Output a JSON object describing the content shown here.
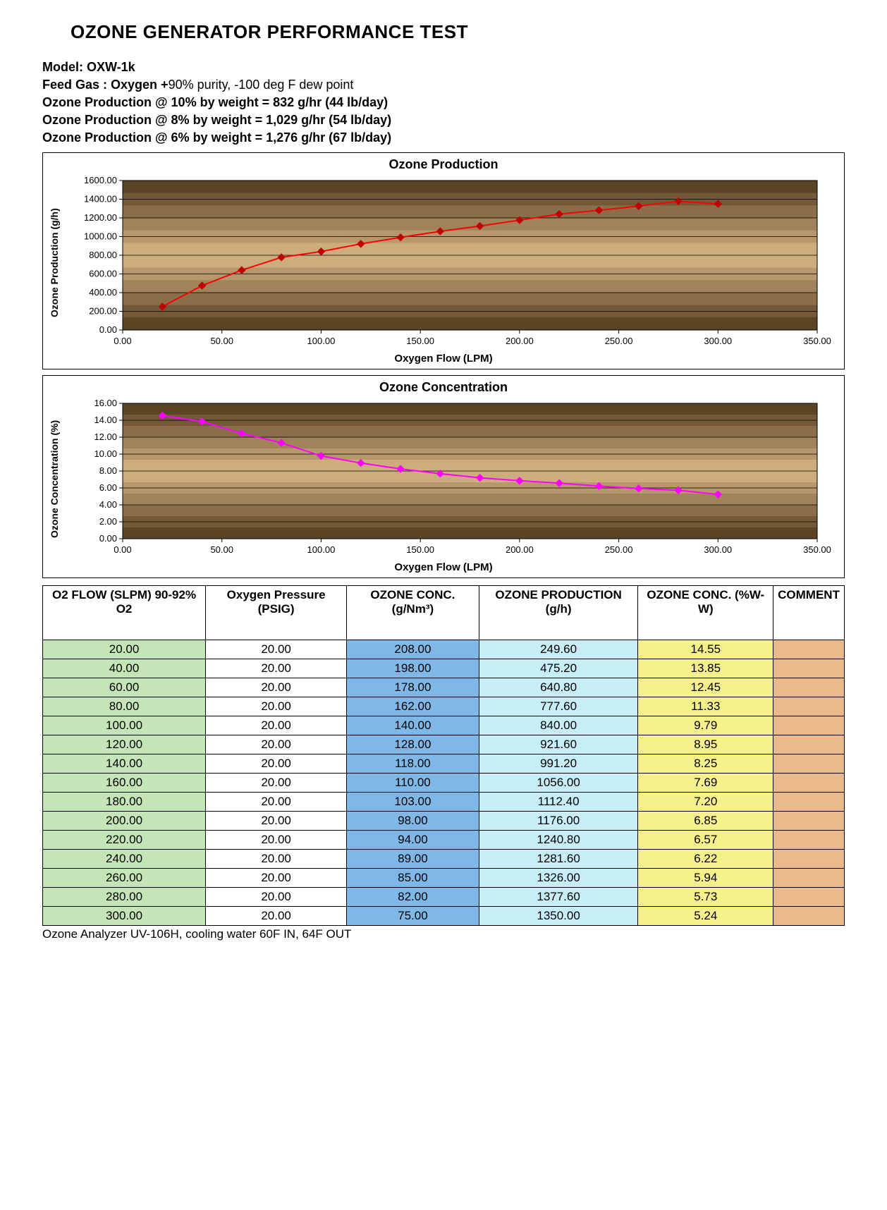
{
  "title": "OZONE GENERATOR PERFORMANCE TEST",
  "header": {
    "model_label": "Model: ",
    "model_value": "OXW-1k",
    "feed_label": "Feed Gas : Oxygen +",
    "feed_value": "90% purity, -100 deg F dew point",
    "prod10": "Ozone Production @ 10% by weight = 832 g/hr (44 lb/day)",
    "prod8": "Ozone Production @ 8% by weight = 1,029 g/hr (54 lb/day)",
    "prod6": "Ozone Production @ 6% by weight = 1,276 g/hr (67 lb/day)"
  },
  "chart1": {
    "type": "line",
    "title": "Ozone Production",
    "x_label": "Oxygen Flow (LPM)",
    "y_label": "Ozone Production (g/h)",
    "xlim": [
      0,
      350
    ],
    "xtick_step": 50,
    "ylim": [
      0,
      1600
    ],
    "ytick_step": 200,
    "line_color": "#ff0000",
    "marker_color": "#c00000",
    "marker_size": 5,
    "line_width": 2,
    "grid_color": "#000000",
    "plot_bg_top": "#5c4426",
    "plot_bg_mid": "#d8b886",
    "plot_bg_bot": "#5c4426",
    "tick_decimals": 2,
    "x": [
      20,
      40,
      60,
      80,
      100,
      120,
      140,
      160,
      180,
      200,
      220,
      240,
      260,
      280,
      300
    ],
    "y": [
      249.6,
      475.2,
      640.8,
      777.6,
      840.0,
      921.6,
      991.2,
      1056.0,
      1112.4,
      1176.0,
      1240.8,
      1281.6,
      1326.0,
      1377.6,
      1350.0
    ]
  },
  "chart2": {
    "type": "line",
    "title": "Ozone Concentration",
    "x_label": "Oxygen Flow (LPM)",
    "y_label": "Ozone Concentration (%)",
    "xlim": [
      0,
      350
    ],
    "xtick_step": 50,
    "ylim": [
      0,
      16
    ],
    "ytick_step": 2,
    "line_color": "#ff00ff",
    "marker_color": "#ff00ff",
    "marker_size": 5,
    "line_width": 2,
    "grid_color": "#000000",
    "plot_bg_top": "#5c4426",
    "plot_bg_mid": "#d8b886",
    "plot_bg_bot": "#5c4426",
    "tick_decimals": 2,
    "x": [
      20,
      40,
      60,
      80,
      100,
      120,
      140,
      160,
      180,
      200,
      220,
      240,
      260,
      280,
      300
    ],
    "y": [
      14.55,
      13.85,
      12.45,
      11.33,
      9.79,
      8.95,
      8.25,
      7.69,
      7.2,
      6.85,
      6.57,
      6.22,
      5.94,
      5.73,
      5.24
    ]
  },
  "table": {
    "columns": [
      "O2 FLOW (SLPM) 90-92% O2",
      "Oxygen Pressure (PSIG)",
      "OZONE CONC. (g/Nm³)",
      "OZONE PRODUCTION (g/h)",
      "OZONE CONC. (%W-W)",
      "COMMENT"
    ],
    "col_bg": [
      "#c4e5b5",
      "#ffffff",
      "#7fb7e6",
      "#c7eef7",
      "#f5f08a",
      "#eab98a"
    ],
    "col_decimals": [
      2,
      2,
      2,
      2,
      2,
      null
    ],
    "rows": [
      [
        20.0,
        20.0,
        208.0,
        249.6,
        14.55,
        ""
      ],
      [
        40.0,
        20.0,
        198.0,
        475.2,
        13.85,
        ""
      ],
      [
        60.0,
        20.0,
        178.0,
        640.8,
        12.45,
        ""
      ],
      [
        80.0,
        20.0,
        162.0,
        777.6,
        11.33,
        ""
      ],
      [
        100.0,
        20.0,
        140.0,
        840.0,
        9.79,
        ""
      ],
      [
        120.0,
        20.0,
        128.0,
        921.6,
        8.95,
        ""
      ],
      [
        140.0,
        20.0,
        118.0,
        991.2,
        8.25,
        ""
      ],
      [
        160.0,
        20.0,
        110.0,
        1056.0,
        7.69,
        ""
      ],
      [
        180.0,
        20.0,
        103.0,
        1112.4,
        7.2,
        ""
      ],
      [
        200.0,
        20.0,
        98.0,
        1176.0,
        6.85,
        ""
      ],
      [
        220.0,
        20.0,
        94.0,
        1240.8,
        6.57,
        ""
      ],
      [
        240.0,
        20.0,
        89.0,
        1281.6,
        6.22,
        ""
      ],
      [
        260.0,
        20.0,
        85.0,
        1326.0,
        5.94,
        ""
      ],
      [
        280.0,
        20.0,
        82.0,
        1377.6,
        5.73,
        ""
      ],
      [
        300.0,
        20.0,
        75.0,
        1350.0,
        5.24,
        ""
      ]
    ]
  },
  "footnote": "Ozone Analyzer UV-106H, cooling water 60F IN, 64F OUT"
}
